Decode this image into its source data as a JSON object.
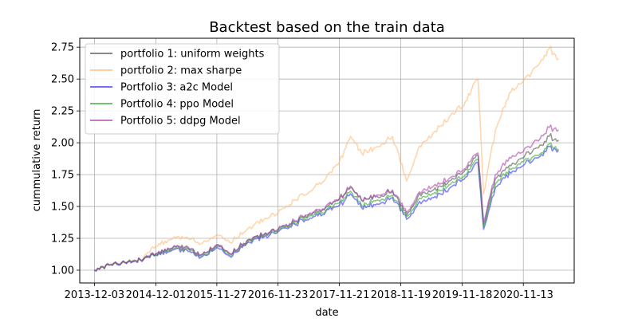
{
  "chart_data": {
    "type": "line",
    "title": "Backtest based on the train data",
    "xlabel": "date",
    "ylabel": "cummulative return",
    "xlim": [
      "2013-09-07",
      "2021-09-10"
    ],
    "ylim": [
      0.9,
      2.82
    ],
    "grid": true,
    "legend_position": "top-left",
    "x_ticks": [
      "2013-12-03",
      "2014-12-01",
      "2015-11-27",
      "2016-11-23",
      "2017-11-21",
      "2018-11-19",
      "2019-11-18",
      "2020-11-13"
    ],
    "y_ticks": [
      1.0,
      1.25,
      1.5,
      1.75,
      2.0,
      2.25,
      2.5,
      2.75
    ],
    "y_tick_labels": [
      "1.00",
      "1.25",
      "1.50",
      "1.75",
      "2.00",
      "2.25",
      "2.50",
      "2.75"
    ],
    "series": [
      {
        "name": "portfolio 1: uniform weights",
        "color": "#555555",
        "points": [
          [
            "2013-12-03",
            1.0
          ],
          [
            "2014-03-01",
            1.04
          ],
          [
            "2014-06-01",
            1.06
          ],
          [
            "2014-09-01",
            1.08
          ],
          [
            "2014-12-01",
            1.13
          ],
          [
            "2015-03-01",
            1.17
          ],
          [
            "2015-06-01",
            1.19
          ],
          [
            "2015-08-25",
            1.12
          ],
          [
            "2015-11-27",
            1.2
          ],
          [
            "2016-02-10",
            1.13
          ],
          [
            "2016-06-01",
            1.24
          ],
          [
            "2016-09-01",
            1.28
          ],
          [
            "2016-11-23",
            1.32
          ],
          [
            "2017-03-01",
            1.38
          ],
          [
            "2017-06-01",
            1.44
          ],
          [
            "2017-09-01",
            1.49
          ],
          [
            "2017-11-21",
            1.56
          ],
          [
            "2018-01-26",
            1.65
          ],
          [
            "2018-04-01",
            1.55
          ],
          [
            "2018-07-01",
            1.58
          ],
          [
            "2018-10-01",
            1.62
          ],
          [
            "2018-12-24",
            1.43
          ],
          [
            "2019-03-01",
            1.58
          ],
          [
            "2019-06-01",
            1.63
          ],
          [
            "2019-09-01",
            1.7
          ],
          [
            "2019-11-18",
            1.76
          ],
          [
            "2020-02-19",
            1.9
          ],
          [
            "2020-03-23",
            1.36
          ],
          [
            "2020-06-01",
            1.72
          ],
          [
            "2020-09-01",
            1.82
          ],
          [
            "2020-11-13",
            1.88
          ],
          [
            "2021-02-01",
            1.96
          ],
          [
            "2021-04-15",
            2.05
          ],
          [
            "2021-06-10",
            2.02
          ]
        ]
      },
      {
        "name": "portfolio 2: max sharpe",
        "color": "#ffbb77",
        "points": [
          [
            "2013-12-03",
            1.0
          ],
          [
            "2014-03-01",
            1.04
          ],
          [
            "2014-06-01",
            1.06
          ],
          [
            "2014-09-01",
            1.08
          ],
          [
            "2014-12-01",
            1.19
          ],
          [
            "2015-03-01",
            1.24
          ],
          [
            "2015-06-01",
            1.26
          ],
          [
            "2015-08-25",
            1.21
          ],
          [
            "2015-11-27",
            1.28
          ],
          [
            "2016-02-10",
            1.22
          ],
          [
            "2016-06-01",
            1.33
          ],
          [
            "2016-09-01",
            1.4
          ],
          [
            "2016-11-23",
            1.45
          ],
          [
            "2017-03-01",
            1.55
          ],
          [
            "2017-06-01",
            1.62
          ],
          [
            "2017-09-01",
            1.72
          ],
          [
            "2017-11-21",
            1.85
          ],
          [
            "2018-01-26",
            2.05
          ],
          [
            "2018-04-01",
            1.92
          ],
          [
            "2018-07-01",
            1.97
          ],
          [
            "2018-10-01",
            2.05
          ],
          [
            "2018-12-24",
            1.7
          ],
          [
            "2019-03-01",
            1.95
          ],
          [
            "2019-06-01",
            2.08
          ],
          [
            "2019-09-01",
            2.2
          ],
          [
            "2019-11-18",
            2.28
          ],
          [
            "2020-02-19",
            2.5
          ],
          [
            "2020-03-23",
            1.6
          ],
          [
            "2020-06-01",
            2.1
          ],
          [
            "2020-09-01",
            2.4
          ],
          [
            "2020-11-13",
            2.48
          ],
          [
            "2021-02-01",
            2.6
          ],
          [
            "2021-04-15",
            2.74
          ],
          [
            "2021-06-10",
            2.66
          ]
        ]
      },
      {
        "name": "Portfolio 3: a2c Model",
        "color": "#3333ff",
        "points": [
          [
            "2013-12-03",
            1.0
          ],
          [
            "2014-03-01",
            1.04
          ],
          [
            "2014-06-01",
            1.06
          ],
          [
            "2014-09-01",
            1.08
          ],
          [
            "2014-12-01",
            1.12
          ],
          [
            "2015-03-01",
            1.15
          ],
          [
            "2015-06-01",
            1.16
          ],
          [
            "2015-08-25",
            1.1
          ],
          [
            "2015-11-27",
            1.18
          ],
          [
            "2016-02-10",
            1.11
          ],
          [
            "2016-06-01",
            1.22
          ],
          [
            "2016-09-01",
            1.26
          ],
          [
            "2016-11-23",
            1.3
          ],
          [
            "2017-03-01",
            1.36
          ],
          [
            "2017-06-01",
            1.41
          ],
          [
            "2017-09-01",
            1.46
          ],
          [
            "2017-11-21",
            1.51
          ],
          [
            "2018-01-26",
            1.6
          ],
          [
            "2018-04-01",
            1.49
          ],
          [
            "2018-07-01",
            1.52
          ],
          [
            "2018-10-01",
            1.57
          ],
          [
            "2018-12-24",
            1.4
          ],
          [
            "2019-03-01",
            1.52
          ],
          [
            "2019-06-01",
            1.57
          ],
          [
            "2019-09-01",
            1.64
          ],
          [
            "2019-11-18",
            1.71
          ],
          [
            "2020-02-19",
            1.84
          ],
          [
            "2020-03-23",
            1.32
          ],
          [
            "2020-06-01",
            1.65
          ],
          [
            "2020-09-01",
            1.76
          ],
          [
            "2020-11-13",
            1.82
          ],
          [
            "2021-02-01",
            1.88
          ],
          [
            "2021-04-15",
            1.97
          ],
          [
            "2021-06-10",
            1.94
          ]
        ]
      },
      {
        "name": "Portfolio 4: ppo Model",
        "color": "#33aa33",
        "points": [
          [
            "2013-12-03",
            1.0
          ],
          [
            "2014-03-01",
            1.04
          ],
          [
            "2014-06-01",
            1.06
          ],
          [
            "2014-09-01",
            1.08
          ],
          [
            "2014-12-01",
            1.12
          ],
          [
            "2015-03-01",
            1.16
          ],
          [
            "2015-06-01",
            1.17
          ],
          [
            "2015-08-25",
            1.11
          ],
          [
            "2015-11-27",
            1.19
          ],
          [
            "2016-02-10",
            1.12
          ],
          [
            "2016-06-01",
            1.23
          ],
          [
            "2016-09-01",
            1.27
          ],
          [
            "2016-11-23",
            1.31
          ],
          [
            "2017-03-01",
            1.37
          ],
          [
            "2017-06-01",
            1.43
          ],
          [
            "2017-09-01",
            1.47
          ],
          [
            "2017-11-21",
            1.53
          ],
          [
            "2018-01-26",
            1.62
          ],
          [
            "2018-04-01",
            1.51
          ],
          [
            "2018-07-01",
            1.55
          ],
          [
            "2018-10-01",
            1.59
          ],
          [
            "2018-12-24",
            1.42
          ],
          [
            "2019-03-01",
            1.55
          ],
          [
            "2019-06-01",
            1.6
          ],
          [
            "2019-09-01",
            1.67
          ],
          [
            "2019-11-18",
            1.73
          ],
          [
            "2020-02-19",
            1.87
          ],
          [
            "2020-03-23",
            1.34
          ],
          [
            "2020-06-01",
            1.68
          ],
          [
            "2020-09-01",
            1.79
          ],
          [
            "2020-11-13",
            1.85
          ],
          [
            "2021-02-01",
            1.9
          ],
          [
            "2021-04-15",
            1.99
          ],
          [
            "2021-06-10",
            1.95
          ]
        ]
      },
      {
        "name": "Portfolio 5: ddpg Model",
        "color": "#aa44aa",
        "points": [
          [
            "2013-12-03",
            1.0
          ],
          [
            "2014-03-01",
            1.04
          ],
          [
            "2014-06-01",
            1.06
          ],
          [
            "2014-09-01",
            1.08
          ],
          [
            "2014-12-01",
            1.13
          ],
          [
            "2015-03-01",
            1.17
          ],
          [
            "2015-06-01",
            1.18
          ],
          [
            "2015-08-25",
            1.12
          ],
          [
            "2015-11-27",
            1.2
          ],
          [
            "2016-02-10",
            1.13
          ],
          [
            "2016-06-01",
            1.24
          ],
          [
            "2016-09-01",
            1.28
          ],
          [
            "2016-11-23",
            1.32
          ],
          [
            "2017-03-01",
            1.39
          ],
          [
            "2017-06-01",
            1.45
          ],
          [
            "2017-09-01",
            1.5
          ],
          [
            "2017-11-21",
            1.56
          ],
          [
            "2018-01-26",
            1.66
          ],
          [
            "2018-04-01",
            1.55
          ],
          [
            "2018-07-01",
            1.59
          ],
          [
            "2018-10-01",
            1.63
          ],
          [
            "2018-12-24",
            1.45
          ],
          [
            "2019-03-01",
            1.6
          ],
          [
            "2019-06-01",
            1.66
          ],
          [
            "2019-09-01",
            1.72
          ],
          [
            "2019-11-18",
            1.78
          ],
          [
            "2020-02-19",
            1.92
          ],
          [
            "2020-03-23",
            1.38
          ],
          [
            "2020-06-01",
            1.75
          ],
          [
            "2020-09-01",
            1.88
          ],
          [
            "2020-11-13",
            1.93
          ],
          [
            "2021-02-01",
            2.02
          ],
          [
            "2021-04-15",
            2.12
          ],
          [
            "2021-06-10",
            2.1
          ]
        ]
      }
    ]
  }
}
